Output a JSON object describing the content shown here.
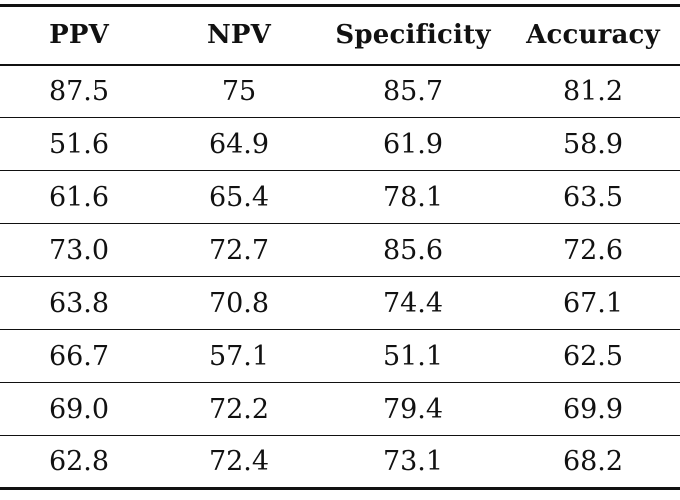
{
  "table": {
    "headers": [
      "PPV",
      "NPV",
      "Specificity",
      "Accuracy"
    ],
    "rows": [
      [
        "87.5",
        "75",
        "85.7",
        "81.2"
      ],
      [
        "51.6",
        "64.9",
        "61.9",
        "58.9"
      ],
      [
        "61.6",
        "65.4",
        "78.1",
        "63.5"
      ],
      [
        "73.0",
        "72.7",
        "85.6",
        "72.6"
      ],
      [
        "63.8",
        "70.8",
        "74.4",
        "67.1"
      ],
      [
        "66.7",
        "57.1",
        "51.1",
        "62.5"
      ],
      [
        "69.0",
        "72.2",
        "79.4",
        "69.9"
      ],
      [
        "62.8",
        "72.4",
        "73.1",
        "68.2"
      ]
    ]
  }
}
